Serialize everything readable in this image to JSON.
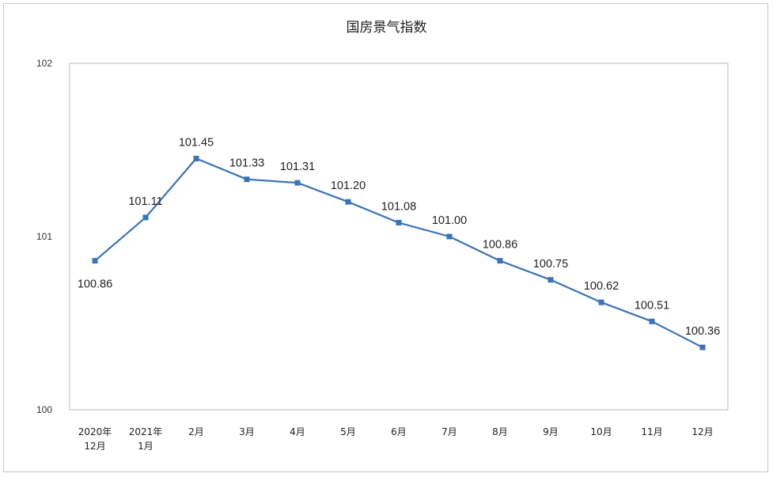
{
  "chart_data": {
    "type": "line",
    "title": "国房景气指数",
    "xlabel": "",
    "ylabel": "",
    "categories": [
      [
        "2020年",
        "12月"
      ],
      [
        "2021年",
        "1月"
      ],
      [
        "2月"
      ],
      [
        "3月"
      ],
      [
        "4月"
      ],
      [
        "5月"
      ],
      [
        "6月"
      ],
      [
        "7月"
      ],
      [
        "8月"
      ],
      [
        "9月"
      ],
      [
        "10月"
      ],
      [
        "11月"
      ],
      [
        "12月"
      ]
    ],
    "series": [
      {
        "values": [
          100.86,
          101.11,
          101.45,
          101.33,
          101.31,
          101.2,
          101.08,
          101.0,
          100.86,
          100.75,
          100.62,
          100.51,
          100.36
        ],
        "labels": [
          "100.86",
          "101.11",
          "101.45",
          "101.33",
          "101.31",
          "101.20",
          "101.08",
          "101.00",
          "100.86",
          "100.75",
          "100.62",
          "100.51",
          "100.36"
        ]
      }
    ],
    "ylim": [
      100,
      102
    ],
    "yticks": [
      "100",
      "101",
      "102"
    ],
    "grid": false,
    "legend": "none",
    "line_color": "#3a73b8"
  }
}
